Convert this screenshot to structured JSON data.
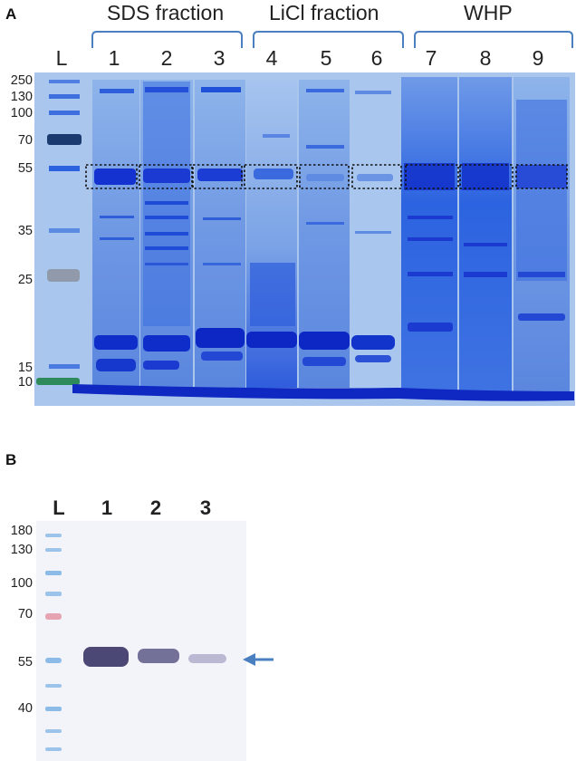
{
  "panel_a": {
    "letter": "A",
    "groups": [
      {
        "label": "SDS fraction"
      },
      {
        "label": "LiCl fraction"
      },
      {
        "label": "WHP"
      }
    ],
    "lanes": [
      "L",
      "1",
      "2",
      "3",
      "4",
      "5",
      "6",
      "7",
      "8",
      "9"
    ],
    "markers": [
      "250",
      "130",
      "100",
      "70",
      "55",
      "35",
      "25",
      "15",
      "10"
    ]
  },
  "panel_b": {
    "letter": "B",
    "lanes": [
      "L",
      "1",
      "2",
      "3"
    ],
    "markers": [
      "180",
      "130",
      "100",
      "70",
      "55",
      "40"
    ]
  },
  "colors": {
    "gel_bg": "#9fc0ea",
    "band": "#1c3fd6",
    "bracket": "#4a7fc0",
    "arrow": "#4a7fc0",
    "western_band": "#3a3566"
  }
}
